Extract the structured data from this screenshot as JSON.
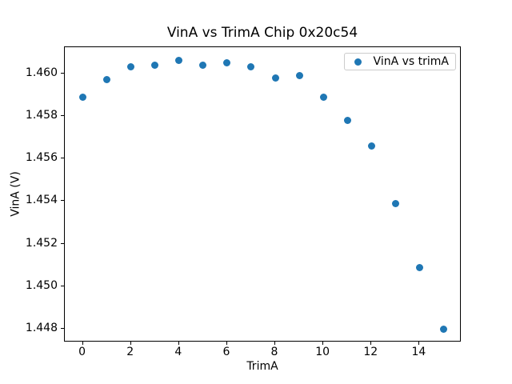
{
  "figure": {
    "background": "#ffffff",
    "accent_color": "#1f77b4"
  },
  "chart_data": {
    "type": "scatter",
    "title": "VinA vs TrimA Chip 0x20c54",
    "xlabel": "TrimA",
    "ylabel": "VinA (V)",
    "grid": false,
    "legend": {
      "position": "upper right",
      "entries": [
        {
          "label": "VinA vs trimA",
          "marker": "dot",
          "marker_color": "#1f77b4"
        }
      ]
    },
    "xlim": [
      -0.75,
      15.75
    ],
    "ylim": [
      1.44737,
      1.46123
    ],
    "xticks": [
      0,
      2,
      4,
      6,
      8,
      10,
      12,
      14
    ],
    "xtick_labels": [
      "0",
      "2",
      "4",
      "6",
      "8",
      "10",
      "12",
      "14"
    ],
    "yticks": [
      1.448,
      1.45,
      1.452,
      1.454,
      1.456,
      1.458,
      1.46
    ],
    "ytick_labels": [
      "1.448",
      "1.450",
      "1.452",
      "1.454",
      "1.456",
      "1.458",
      "1.460"
    ],
    "series": [
      {
        "name": "VinA vs trimA",
        "color": "#1f77b4",
        "x": [
          0,
          1,
          2,
          3,
          4,
          5,
          6,
          7,
          8,
          9,
          10,
          11,
          12,
          13,
          14,
          15
        ],
        "y": [
          1.4589,
          1.4597,
          1.4603,
          1.4604,
          1.4606,
          1.4604,
          1.4605,
          1.4603,
          1.4598,
          1.4599,
          1.4589,
          1.4578,
          1.4566,
          1.4539,
          1.4509,
          1.448
        ]
      }
    ]
  }
}
